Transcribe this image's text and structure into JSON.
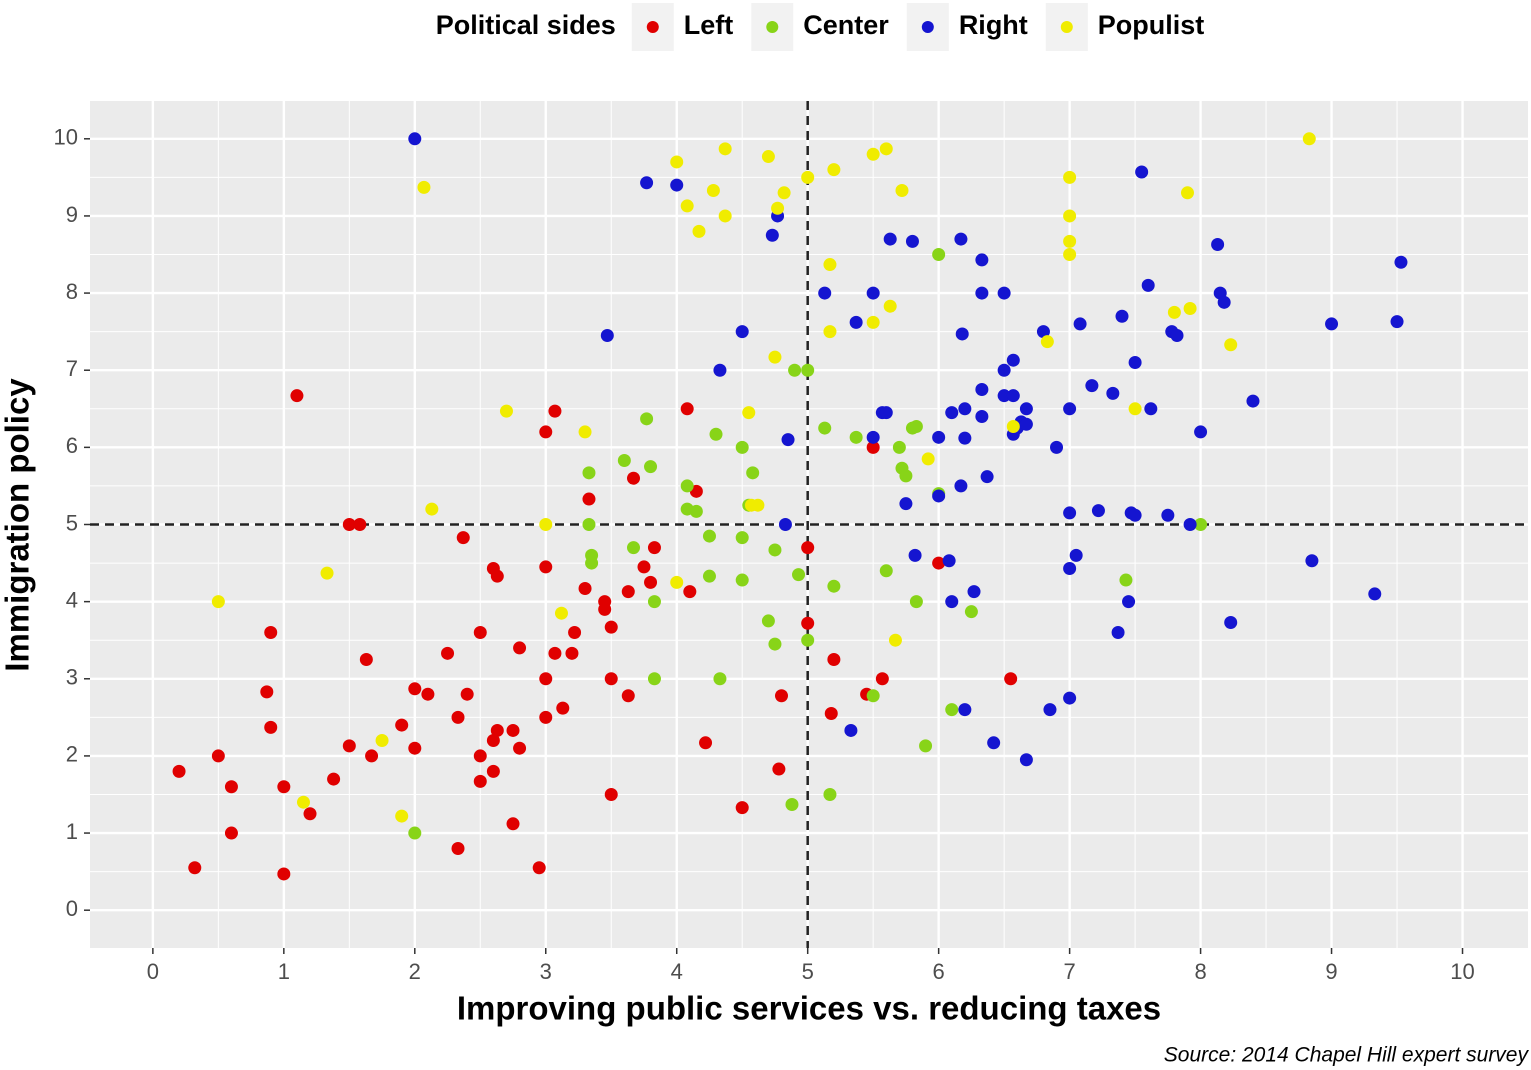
{
  "chart_data": {
    "type": "scatter",
    "xlabel": "Improving public services vs. reducing taxes",
    "ylabel": "Immigration policy",
    "source": "Source: 2014 Chapel Hill expert survey",
    "legend_title": "Political sides",
    "legend": "top",
    "grid": true,
    "xlim": [
      -0.48,
      10.5
    ],
    "ylim": [
      -0.49,
      10.49
    ],
    "xticks": [
      0,
      1,
      2,
      3,
      4,
      5,
      6,
      7,
      8,
      9,
      10
    ],
    "yticks": [
      0,
      1,
      2,
      3,
      4,
      5,
      6,
      7,
      8,
      9,
      10
    ],
    "reference_lines": {
      "x": 5,
      "y": 5
    },
    "series": [
      {
        "name": "Left",
        "color": "#e00000",
        "x": [
          0.2,
          0.32,
          0.5,
          0.6,
          0.6,
          0.87,
          0.9,
          0.9,
          1.0,
          1.0,
          1.1,
          1.2,
          1.38,
          1.5,
          1.5,
          1.58,
          1.63,
          1.67,
          1.9,
          2.0,
          2.0,
          2.1,
          2.25,
          2.33,
          2.33,
          2.37,
          2.4,
          2.5,
          2.5,
          2.5,
          2.6,
          2.6,
          2.6,
          2.63,
          2.63,
          2.75,
          2.75,
          2.8,
          2.8,
          2.95,
          3.0,
          3.0,
          3.0,
          3.0,
          3.07,
          3.07,
          3.13,
          3.2,
          3.22,
          3.3,
          3.33,
          3.45,
          3.45,
          3.5,
          3.5,
          3.5,
          3.63,
          3.63,
          3.67,
          3.75,
          3.8,
          3.83,
          4.08,
          4.1,
          4.15,
          4.22,
          4.5,
          4.8,
          4.78,
          5.0,
          5.0,
          5.2,
          5.18,
          5.45,
          5.5,
          5.57,
          6.0,
          6.55
        ],
        "y": [
          1.8,
          0.55,
          2.0,
          1.6,
          1.0,
          2.83,
          2.37,
          3.6,
          1.6,
          0.47,
          6.67,
          1.25,
          1.7,
          2.13,
          5.0,
          5.0,
          3.25,
          2.0,
          2.4,
          2.87,
          2.1,
          2.8,
          3.33,
          2.5,
          0.8,
          4.83,
          2.8,
          3.6,
          2.0,
          1.67,
          2.2,
          1.8,
          4.43,
          2.33,
          4.33,
          2.33,
          1.12,
          3.4,
          2.1,
          0.55,
          6.2,
          4.45,
          3.0,
          2.5,
          6.47,
          3.33,
          2.62,
          3.33,
          3.6,
          4.17,
          5.33,
          4.0,
          3.9,
          3.67,
          3.0,
          1.5,
          4.13,
          2.78,
          5.6,
          4.45,
          4.25,
          4.7,
          6.5,
          4.13,
          5.43,
          2.17,
          1.33,
          2.78,
          1.83,
          4.7,
          3.72,
          3.25,
          2.55,
          2.8,
          6.0,
          3.0,
          4.5,
          3.0
        ]
      },
      {
        "name": "Center",
        "color": "#88d418",
        "x": [
          2.0,
          3.33,
          3.33,
          3.35,
          3.35,
          3.6,
          3.67,
          3.77,
          3.8,
          3.83,
          3.83,
          4.08,
          4.08,
          4.15,
          4.25,
          4.25,
          4.3,
          4.33,
          4.5,
          4.5,
          4.5,
          4.55,
          4.58,
          4.7,
          4.75,
          4.75,
          4.88,
          4.9,
          4.93,
          5.0,
          5.0,
          5.13,
          5.17,
          5.2,
          5.37,
          5.5,
          5.6,
          5.7,
          5.72,
          5.75,
          5.8,
          5.83,
          5.83,
          5.9,
          6.0,
          6.0,
          6.1,
          6.25,
          7.43,
          8.0
        ],
        "y": [
          1.0,
          5.67,
          5.0,
          4.6,
          4.5,
          5.83,
          4.7,
          6.37,
          5.75,
          4.0,
          3.0,
          5.5,
          5.2,
          5.17,
          4.85,
          4.33,
          6.17,
          3.0,
          6.0,
          4.83,
          4.28,
          5.25,
          5.67,
          3.75,
          4.67,
          3.45,
          1.37,
          7.0,
          4.35,
          7.0,
          3.5,
          6.25,
          1.5,
          4.2,
          6.13,
          2.78,
          4.4,
          6.0,
          5.73,
          5.63,
          6.25,
          6.27,
          4.0,
          2.13,
          8.5,
          5.4,
          2.6,
          3.87,
          4.28,
          5.0
        ]
      },
      {
        "name": "Right",
        "color": "#1515d0",
        "x": [
          2.0,
          3.47,
          3.77,
          4.0,
          4.33,
          4.5,
          4.73,
          4.77,
          4.83,
          4.85,
          5.13,
          5.33,
          5.37,
          5.5,
          5.5,
          5.57,
          5.6,
          5.63,
          5.75,
          5.8,
          5.82,
          6.0,
          6.0,
          6.08,
          6.1,
          6.1,
          6.17,
          6.17,
          6.18,
          6.2,
          6.2,
          6.2,
          6.27,
          6.33,
          6.33,
          6.33,
          6.33,
          6.37,
          6.42,
          6.5,
          6.5,
          6.5,
          6.57,
          6.57,
          6.57,
          6.6,
          6.63,
          6.67,
          6.67,
          6.67,
          6.8,
          6.85,
          6.9,
          7.0,
          7.0,
          7.0,
          7.0,
          7.05,
          7.08,
          7.17,
          7.22,
          7.33,
          7.37,
          7.4,
          7.45,
          7.47,
          7.5,
          7.5,
          7.55,
          7.6,
          7.62,
          7.75,
          7.78,
          7.82,
          7.92,
          8.0,
          8.13,
          8.15,
          8.18,
          8.23,
          8.4,
          8.85,
          9.0,
          9.33,
          9.5,
          9.53
        ],
        "y": [
          10.0,
          7.45,
          9.43,
          9.4,
          7.0,
          7.5,
          8.75,
          9.0,
          5.0,
          6.1,
          8.0,
          2.33,
          7.62,
          8.0,
          6.13,
          6.45,
          6.45,
          8.7,
          5.27,
          8.67,
          4.6,
          6.13,
          5.37,
          4.53,
          4.0,
          6.45,
          8.7,
          5.5,
          7.47,
          6.5,
          6.12,
          2.6,
          4.13,
          8.43,
          8.0,
          6.75,
          6.4,
          5.62,
          2.17,
          8.0,
          7.0,
          6.67,
          7.13,
          6.67,
          6.17,
          6.25,
          6.33,
          6.5,
          1.95,
          6.3,
          7.5,
          2.6,
          6.0,
          6.5,
          5.15,
          4.43,
          2.75,
          4.6,
          7.6,
          6.8,
          5.18,
          6.7,
          3.6,
          7.7,
          4.0,
          5.15,
          7.1,
          5.12,
          9.57,
          8.1,
          6.5,
          5.12,
          7.5,
          7.45,
          5.0,
          6.2,
          8.63,
          8.0,
          7.88,
          3.73,
          6.6,
          4.53,
          7.6,
          4.1,
          7.63,
          8.4
        ]
      },
      {
        "name": "Populist",
        "color": "#f0ec00",
        "x": [
          0.5,
          1.15,
          1.33,
          1.75,
          1.9,
          2.07,
          2.13,
          2.7,
          3.0,
          3.12,
          3.3,
          4.0,
          4.0,
          4.08,
          4.17,
          4.28,
          4.37,
          4.37,
          4.7,
          4.75,
          4.77,
          4.82,
          4.55,
          4.57,
          4.62,
          5.0,
          5.17,
          5.17,
          5.2,
          5.5,
          5.6,
          5.5,
          5.63,
          5.67,
          5.72,
          5.92,
          6.57,
          6.83,
          7.0,
          7.0,
          7.0,
          7.0,
          7.5,
          7.8,
          7.9,
          7.92,
          8.23,
          8.83
        ],
        "y": [
          4.0,
          1.4,
          4.37,
          2.2,
          1.22,
          9.37,
          5.2,
          6.47,
          5.0,
          3.85,
          6.2,
          9.7,
          4.25,
          9.13,
          8.8,
          9.33,
          9.87,
          9.0,
          9.77,
          7.17,
          9.1,
          9.3,
          6.45,
          5.25,
          5.25,
          9.5,
          8.37,
          7.5,
          9.6,
          9.8,
          9.87,
          7.62,
          7.83,
          3.5,
          9.33,
          5.85,
          6.27,
          7.37,
          9.5,
          9.0,
          8.67,
          8.5,
          6.5,
          7.75,
          9.3,
          7.8,
          7.33,
          10.0
        ]
      }
    ]
  }
}
